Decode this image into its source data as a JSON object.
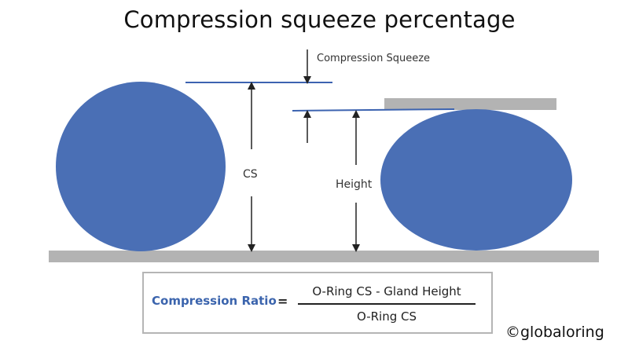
{
  "title": "Compression squeeze percentage",
  "labels": {
    "compression_squeeze": "Compression Squeeze",
    "cs": "CS",
    "height": "Height"
  },
  "formula": {
    "ratio_label": "Compression Ratio",
    "equals": "=",
    "numerator": "O-Ring CS - Gland Height",
    "denominator": "O-Ring CS"
  },
  "credit": "©globaloring",
  "colors": {
    "oring_fill": "#4a6fb5",
    "surface": "#b3b3b3",
    "guide_line": "#3c63b0",
    "ratio_label": "#3b64ad",
    "arrow": "#222222"
  }
}
